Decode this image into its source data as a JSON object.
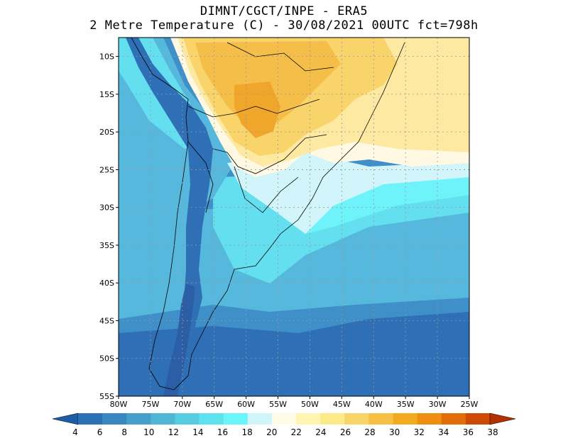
{
  "title": {
    "line1": "DIMNT/CGCT/INPE -  ERA5",
    "line2": "2 Metre Temperature (C) -  30/08/2021 00UTC fct=798h"
  },
  "map": {
    "lon_range": [
      -80,
      -25
    ],
    "lat_range": [
      -55,
      -7.5
    ],
    "grid": true,
    "lon_ticks": [
      {
        "value": -80,
        "label": "80W"
      },
      {
        "value": -75,
        "label": "75W"
      },
      {
        "value": -70,
        "label": "70W"
      },
      {
        "value": -65,
        "label": "65W"
      },
      {
        "value": -60,
        "label": "60W"
      },
      {
        "value": -55,
        "label": "55W"
      },
      {
        "value": -50,
        "label": "50W"
      },
      {
        "value": -45,
        "label": "45W"
      },
      {
        "value": -40,
        "label": "40W"
      },
      {
        "value": -35,
        "label": "35W"
      },
      {
        "value": -30,
        "label": "30W"
      },
      {
        "value": -25,
        "label": "25W"
      }
    ],
    "lat_ticks": [
      {
        "value": -10,
        "label": "10S"
      },
      {
        "value": -15,
        "label": "15S"
      },
      {
        "value": -20,
        "label": "20S"
      },
      {
        "value": -25,
        "label": "25S"
      },
      {
        "value": -30,
        "label": "30S"
      },
      {
        "value": -35,
        "label": "35S"
      },
      {
        "value": -40,
        "label": "40S"
      },
      {
        "value": -45,
        "label": "45S"
      },
      {
        "value": -50,
        "label": "50S"
      },
      {
        "value": -55,
        "label": "55S"
      }
    ]
  },
  "colorbar": {
    "labels": [
      "4",
      "6",
      "8",
      "10",
      "12",
      "14",
      "16",
      "18",
      "20",
      "22",
      "24",
      "26",
      "28",
      "30",
      "32",
      "34",
      "36",
      "38"
    ],
    "colors": [
      "#2c70b4",
      "#3a86c0",
      "#459ecb",
      "#4fb6d6",
      "#57cde2",
      "#5ee3ee",
      "#6af5f9",
      "#cff5fb",
      "#fffbe6",
      "#fff5b0",
      "#fde98a",
      "#f9d466",
      "#f5c043",
      "#f2aa1e",
      "#ee8f12",
      "#e36c0a",
      "#cd4a05"
    ],
    "low_color": "#1f5ea6",
    "high_color": "#b13101"
  },
  "colors": {
    "deep": "#2f6fb6",
    "mid_blue": "#3f8fc8",
    "light_blue": "#55b8dc",
    "cyan": "#63dff0",
    "bright_cyan": "#6ff3fa",
    "pale_cyan": "#d2f4fb",
    "cream": "#fff8e2",
    "pale_yellow": "#fde9a1",
    "yellow": "#f9d46b",
    "gold": "#f4be48",
    "orange": "#efa62a"
  }
}
